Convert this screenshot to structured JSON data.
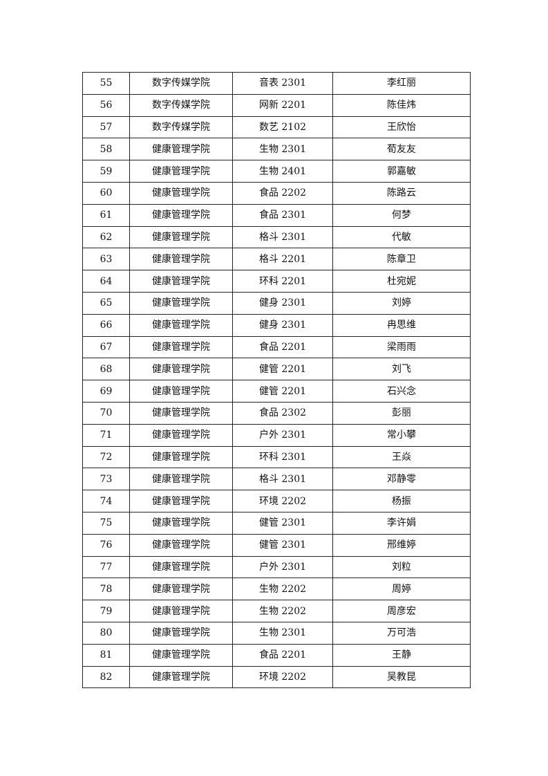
{
  "table": {
    "rows": [
      [
        "55",
        "数字传媒学院",
        "音表 2301",
        "李红丽"
      ],
      [
        "56",
        "数字传媒学院",
        "网新 2201",
        "陈佳炜"
      ],
      [
        "57",
        "数字传媒学院",
        "数艺 2102",
        "王欣怡"
      ],
      [
        "58",
        "健康管理学院",
        "生物 2301",
        "荀友友"
      ],
      [
        "59",
        "健康管理学院",
        "生物 2401",
        "郭嘉敏"
      ],
      [
        "60",
        "健康管理学院",
        "食品 2202",
        "陈路云"
      ],
      [
        "61",
        "健康管理学院",
        "食品 2301",
        "何梦"
      ],
      [
        "62",
        "健康管理学院",
        "格斗 2301",
        "代敏"
      ],
      [
        "63",
        "健康管理学院",
        "格斗 2201",
        "陈章卫"
      ],
      [
        "64",
        "健康管理学院",
        "环科 2201",
        "杜宛妮"
      ],
      [
        "65",
        "健康管理学院",
        "健身 2301",
        "刘婷"
      ],
      [
        "66",
        "健康管理学院",
        "健身 2301",
        "冉思维"
      ],
      [
        "67",
        "健康管理学院",
        "食品 2201",
        "梁雨雨"
      ],
      [
        "68",
        "健康管理学院",
        "健管 2201",
        "刘飞"
      ],
      [
        "69",
        "健康管理学院",
        "健管 2201",
        "石兴念"
      ],
      [
        "70",
        "健康管理学院",
        "食品 2302",
        "彭丽"
      ],
      [
        "71",
        "健康管理学院",
        "户外 2301",
        "常小攀"
      ],
      [
        "72",
        "健康管理学院",
        "环科 2301",
        "王焱"
      ],
      [
        "73",
        "健康管理学院",
        "格斗 2301",
        "邓静零"
      ],
      [
        "74",
        "健康管理学院",
        "环境 2202",
        "杨振"
      ],
      [
        "75",
        "健康管理学院",
        "健管 2301",
        "李许娟"
      ],
      [
        "76",
        "健康管理学院",
        "健管 2301",
        "邢维婷"
      ],
      [
        "77",
        "健康管理学院",
        "户外 2301",
        "刘粒"
      ],
      [
        "78",
        "健康管理学院",
        "生物 2202",
        "周婷"
      ],
      [
        "79",
        "健康管理学院",
        "生物 2202",
        "周彦宏"
      ],
      [
        "80",
        "健康管理学院",
        "生物 2301",
        "万可浩"
      ],
      [
        "81",
        "健康管理学院",
        "食品 2201",
        "王静"
      ],
      [
        "82",
        "健康管理学院",
        "环境 2202",
        "吴教昆"
      ]
    ]
  }
}
